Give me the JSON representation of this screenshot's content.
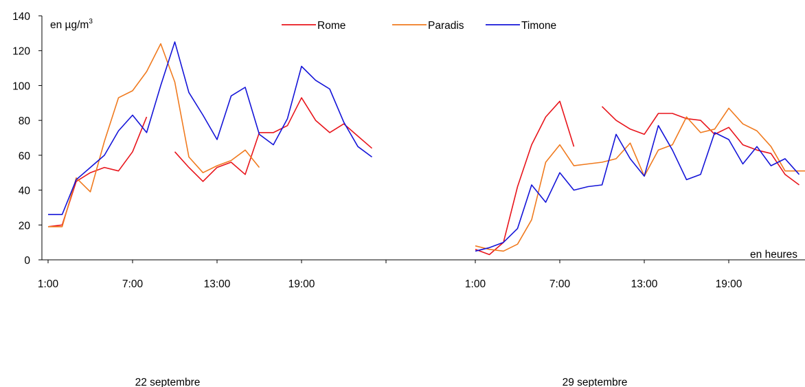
{
  "chart_data": {
    "type": "line",
    "unit_label": "en µg/m",
    "unit_superscript": "3",
    "x_axis_label": "en heures",
    "ylim": [
      0,
      140
    ],
    "y_ticks": [
      0,
      20,
      40,
      60,
      80,
      100,
      120,
      140
    ],
    "legend_position": "top-center",
    "groups": [
      {
        "label": "22 septembre",
        "tick_labels": [
          "1:00",
          "7:00",
          "13:00",
          "19:00"
        ]
      },
      {
        "label": "29 septembre",
        "tick_labels": [
          "1:00",
          "7:00",
          "13:00",
          "19:00"
        ]
      }
    ],
    "series": [
      {
        "name": "Rome",
        "color": "#e8141b",
        "segments": [
          {
            "group": 0,
            "start_hour": 1,
            "values": [
              19,
              20,
              45,
              50,
              53,
              51,
              62,
              82
            ]
          },
          {
            "group": 0,
            "start_hour": 10,
            "values": [
              62,
              53,
              45,
              53,
              56,
              49,
              73,
              73,
              77,
              93,
              80,
              73,
              78,
              71,
              64
            ]
          },
          {
            "group": 1,
            "start_hour": 1,
            "values": [
              6,
              3,
              10,
              42,
              66,
              82,
              91,
              65
            ]
          },
          {
            "group": 1,
            "start_hour": 10,
            "values": [
              88,
              80,
              75,
              72,
              84,
              84,
              81,
              80,
              72,
              76,
              66,
              63,
              61,
              49,
              43
            ]
          }
        ]
      },
      {
        "name": "Paradis",
        "color": "#f07a1e",
        "segments": [
          {
            "group": 0,
            "start_hour": 1,
            "values": [
              19,
              19,
              47,
              39,
              68,
              93,
              97,
              108,
              124,
              102,
              59,
              50,
              54,
              57,
              63,
              53
            ]
          },
          {
            "group": 1,
            "start_hour": 1,
            "values": [
              8,
              6,
              5,
              9,
              23,
              56,
              66,
              54,
              55,
              56,
              58,
              67,
              48,
              63,
              66,
              82,
              73,
              75,
              87,
              78,
              74,
              65,
              51,
              51,
              51
            ]
          }
        ]
      },
      {
        "name": "Timone",
        "color": "#1414d8",
        "segments": [
          {
            "group": 0,
            "start_hour": 1,
            "values": [
              26,
              26,
              46,
              53,
              60,
              74,
              83,
              73,
              100,
              125,
              96,
              83,
              69,
              94,
              99,
              72,
              66,
              81,
              111,
              103,
              98,
              79,
              65,
              59
            ]
          },
          {
            "group": 1,
            "start_hour": 1,
            "values": [
              5,
              7,
              10,
              18,
              43,
              33,
              50,
              40,
              42,
              43,
              72,
              58,
              48,
              77,
              63,
              46,
              49,
              73,
              69,
              55,
              65,
              54,
              58,
              49
            ]
          }
        ]
      }
    ]
  }
}
